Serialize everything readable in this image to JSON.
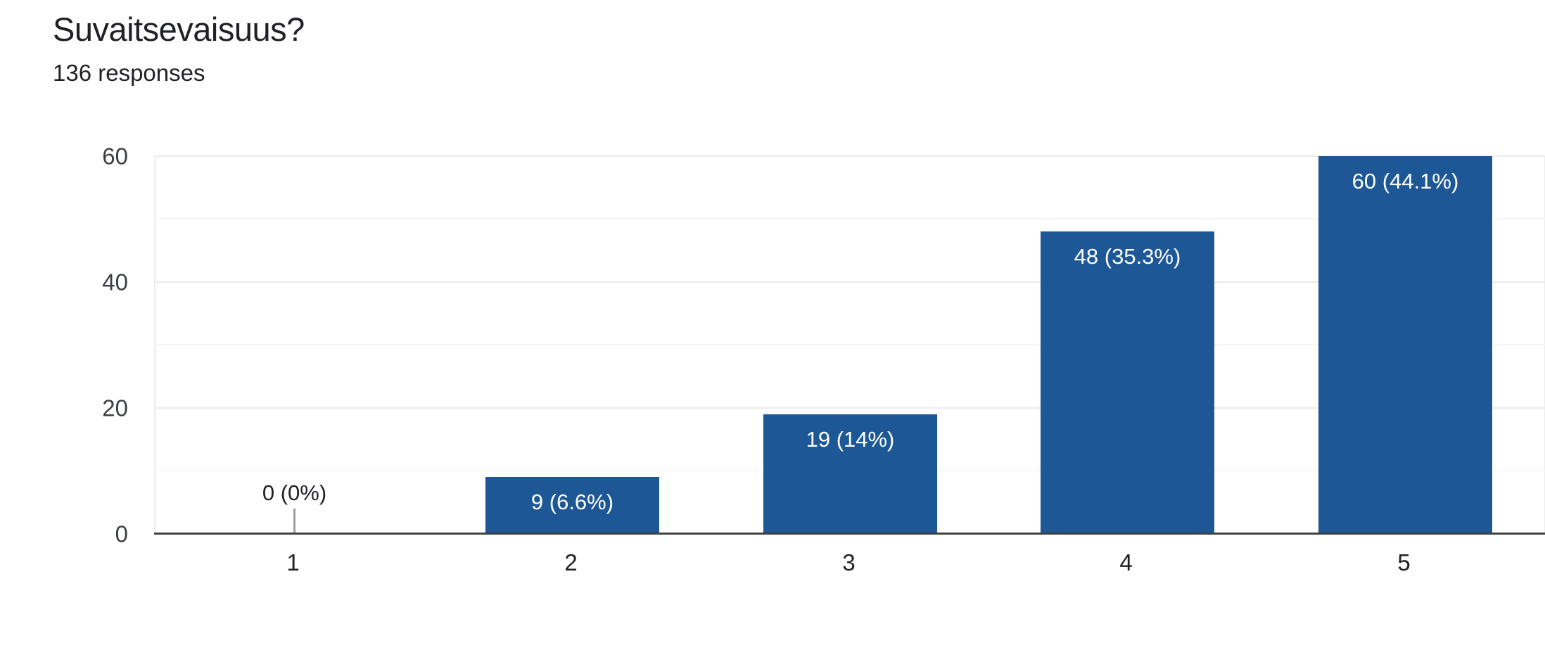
{
  "header": {
    "title": "Suvaitsevaisuus?",
    "subtitle": "136 responses"
  },
  "chart_data": {
    "type": "bar",
    "title": "Suvaitsevaisuus?",
    "subtitle": "136 responses",
    "categories": [
      "1",
      "2",
      "3",
      "4",
      "5"
    ],
    "values": [
      0,
      9,
      19,
      48,
      60
    ],
    "bar_labels": [
      "0 (0%)",
      "9 (6.6%)",
      "19 (14%)",
      "48 (35.3%)",
      "60 (44.1%)"
    ],
    "xlabel": "",
    "ylabel": "",
    "ylim": [
      0,
      60
    ],
    "yticks": [
      0,
      20,
      40,
      60
    ],
    "gridline_step": 10,
    "grid_on": true,
    "legend": "none",
    "bar_color": "#1d5795",
    "bar_label_color_inside": "#ffffff",
    "bar_label_color_zero": "#202124",
    "zero_stem_color": "#9e9e9e",
    "axis_color": "#424242"
  }
}
